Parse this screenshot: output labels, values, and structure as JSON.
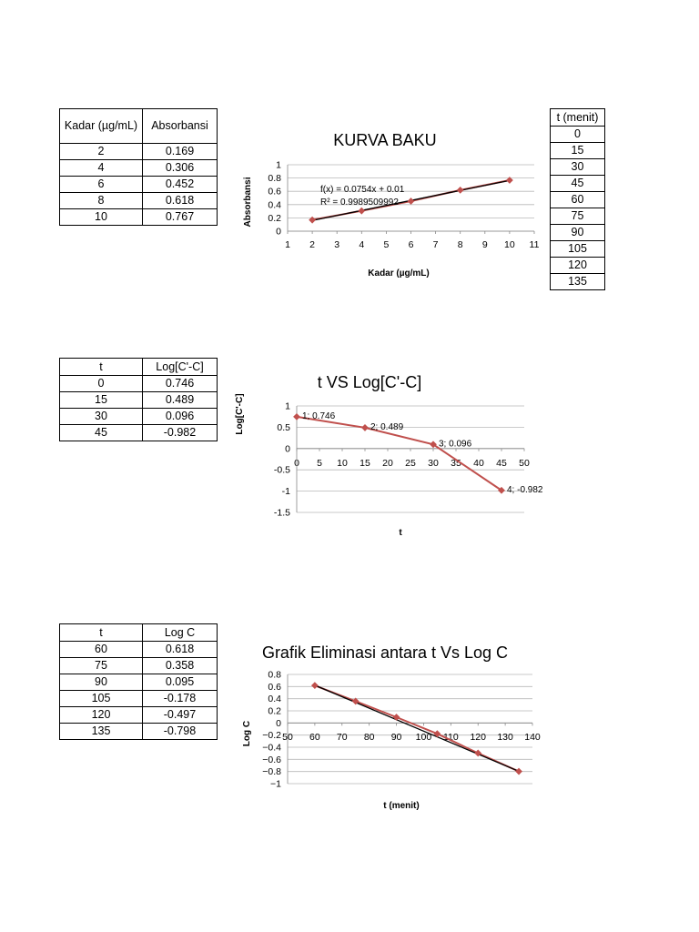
{
  "tables": {
    "kurva": {
      "headers": [
        "Kadar (µg/mL)",
        "Absorbansi"
      ],
      "rows": [
        [
          "2",
          "0.169"
        ],
        [
          "4",
          "0.306"
        ],
        [
          "6",
          "0.452"
        ],
        [
          "8",
          "0.618"
        ],
        [
          "10",
          "0.767"
        ]
      ]
    },
    "tmenit": {
      "header": "t (menit)",
      "rows": [
        "0",
        "15",
        "30",
        "45",
        "60",
        "75",
        "90",
        "105",
        "120",
        "135"
      ]
    },
    "logcc": {
      "headers": [
        "t",
        "Log[C'-C]"
      ],
      "rows": [
        [
          "0",
          "0.746"
        ],
        [
          "15",
          "0.489"
        ],
        [
          "30",
          "0.096"
        ],
        [
          "45",
          "-0.982"
        ]
      ]
    },
    "logc": {
      "headers": [
        "t",
        "Log C"
      ],
      "rows": [
        [
          "60",
          "0.618"
        ],
        [
          "75",
          "0.358"
        ],
        [
          "90",
          "0.095"
        ],
        [
          "105",
          "-0.178"
        ],
        [
          "120",
          "-0.497"
        ],
        [
          "135",
          "-0.798"
        ]
      ]
    }
  },
  "chart_data": [
    {
      "type": "scatter",
      "title": "KURVA BAKU",
      "xlabel": "Kadar (µg/mL)",
      "ylabel": "Absorbansi",
      "xlim": [
        1,
        11
      ],
      "ylim": [
        0,
        1
      ],
      "xticks": [
        "1",
        "2",
        "3",
        "4",
        "5",
        "6",
        "7",
        "8",
        "9",
        "10",
        "11"
      ],
      "yticks": [
        "0",
        "0.2",
        "0.4",
        "0.6",
        "0.8",
        "1"
      ],
      "grid": true,
      "series": [
        {
          "x": [
            2,
            4,
            6,
            8,
            10
          ],
          "y": [
            0.169,
            0.306,
            0.452,
            0.618,
            0.767
          ],
          "color": "#c0504d"
        }
      ],
      "trendline": {
        "slope": 0.0754,
        "intercept": 0.01,
        "color": "#000000"
      },
      "annotations": [
        "f(x) = 0.0754x + 0.01",
        "R² = 0.9989509992"
      ]
    },
    {
      "type": "line",
      "title": "t VS Log[C'-C]",
      "xlabel": "t",
      "ylabel": "Log[C'-C]",
      "xlim": [
        0,
        50
      ],
      "ylim": [
        -1.5,
        1
      ],
      "xticks": [
        "0",
        "5",
        "10",
        "15",
        "20",
        "25",
        "30",
        "35",
        "40",
        "45",
        "50"
      ],
      "yticks": [
        "1",
        "0.5",
        "0",
        "-0.5",
        "-1",
        "-1.5"
      ],
      "grid": true,
      "series": [
        {
          "x": [
            0,
            15,
            30,
            45
          ],
          "y": [
            0.746,
            0.489,
            0.096,
            -0.982
          ],
          "color": "#c0504d"
        }
      ],
      "data_labels": [
        "1; 0.746",
        "2; 0.489",
        "3; 0.096",
        "4; -0.982"
      ]
    },
    {
      "type": "scatter",
      "title": "Grafik Eliminasi antara t Vs Log C",
      "xlabel": "t (menit)",
      "ylabel": "Log C",
      "xlim": [
        50,
        140
      ],
      "ylim": [
        -1,
        0.8
      ],
      "xticks": [
        "50",
        "60",
        "70",
        "80",
        "90",
        "100",
        "110",
        "120",
        "130",
        "140"
      ],
      "yticks": [
        "0.8",
        "0.6",
        "0.4",
        "0.2",
        "0",
        "−0.2",
        "−0.4",
        "−0.6",
        "−0.8",
        "−1"
      ],
      "grid": true,
      "series": [
        {
          "x": [
            60,
            75,
            90,
            105,
            120,
            135
          ],
          "y": [
            0.618,
            0.358,
            0.095,
            -0.178,
            -0.497,
            -0.798
          ],
          "color": "#c0504d"
        }
      ],
      "trendline": {
        "slope": -0.01891,
        "intercept": 1.7561,
        "color": "#000000"
      }
    }
  ]
}
